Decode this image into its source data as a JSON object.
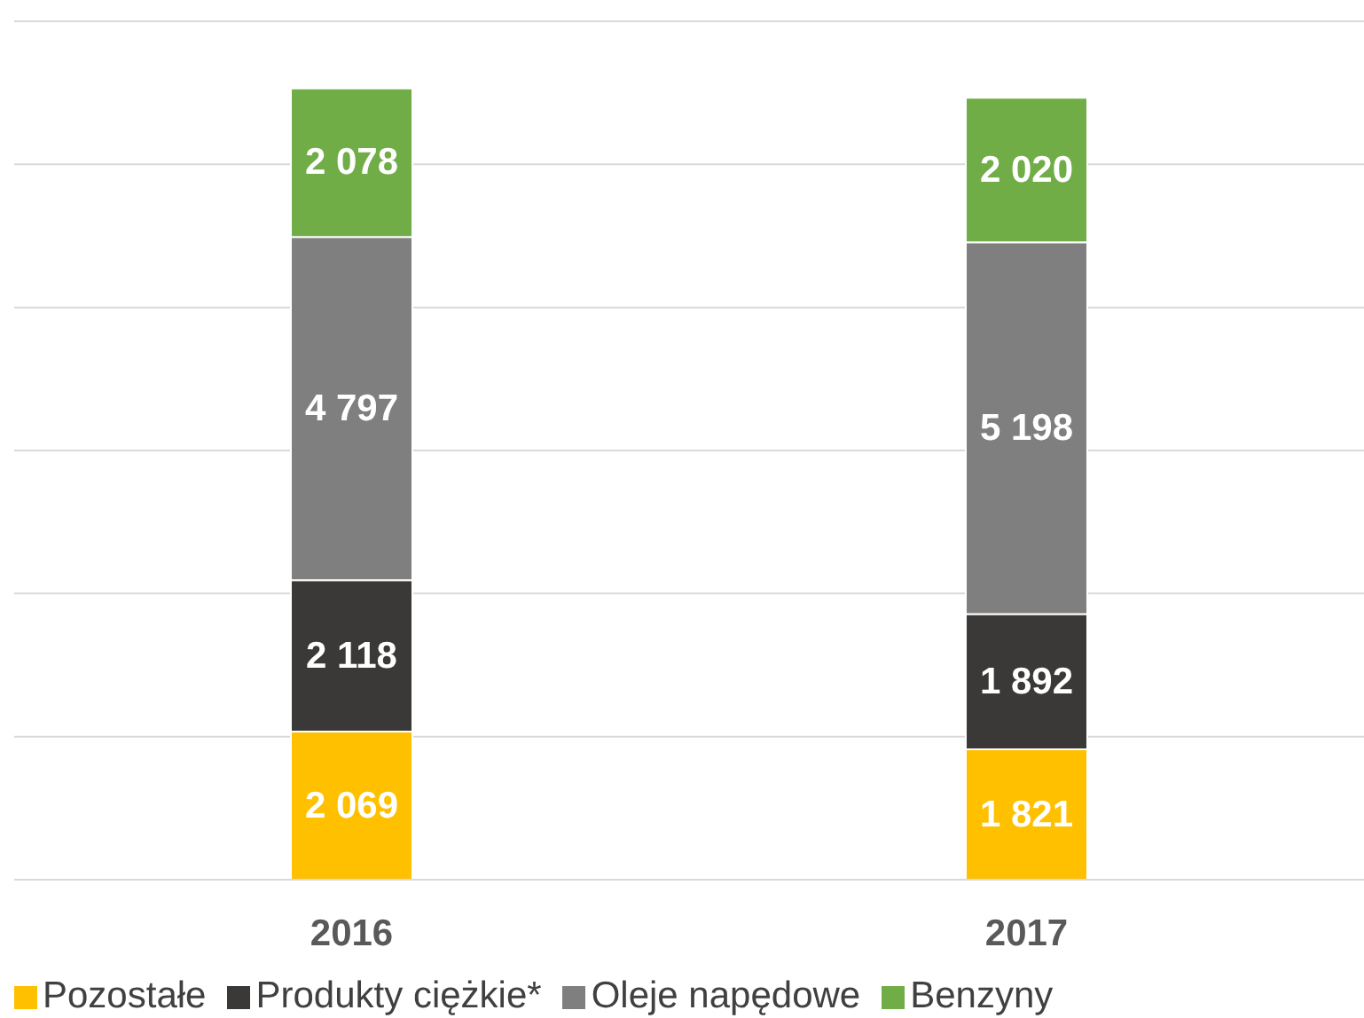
{
  "chart_data": {
    "type": "bar",
    "stacked": true,
    "categories": [
      "2016",
      "2017"
    ],
    "series": [
      {
        "name": "Pozostałe",
        "color": "#ffc000",
        "values": [
          2069,
          1821
        ],
        "value_labels": [
          "2 069",
          "1 821"
        ]
      },
      {
        "name": "Produkty ciężkie*",
        "color": "#3a3937",
        "values": [
          2118,
          1892
        ],
        "value_labels": [
          "2 118",
          "1 892"
        ]
      },
      {
        "name": "Oleje napędowe",
        "color": "#7f7f7f",
        "values": [
          4797,
          5198
        ],
        "value_labels": [
          "4 797",
          "5 198"
        ]
      },
      {
        "name": "Benzyny",
        "color": "#70ad47",
        "values": [
          2078,
          2020
        ],
        "value_labels": [
          "2 078",
          "2 020"
        ]
      }
    ],
    "ylim": [
      0,
      12000
    ],
    "yticks": [
      {
        "value": 0,
        "label": null
      },
      {
        "value": 2000,
        "label": null
      },
      {
        "value": 4000,
        "label": null
      },
      {
        "value": 6000,
        "label": null
      },
      {
        "value": 8000,
        "label": null
      },
      {
        "value": 10000,
        "label": null
      },
      {
        "value": 12000,
        "label": null
      }
    ],
    "grid": "y",
    "legend": "bottom left",
    "tick_labels": "x"
  }
}
